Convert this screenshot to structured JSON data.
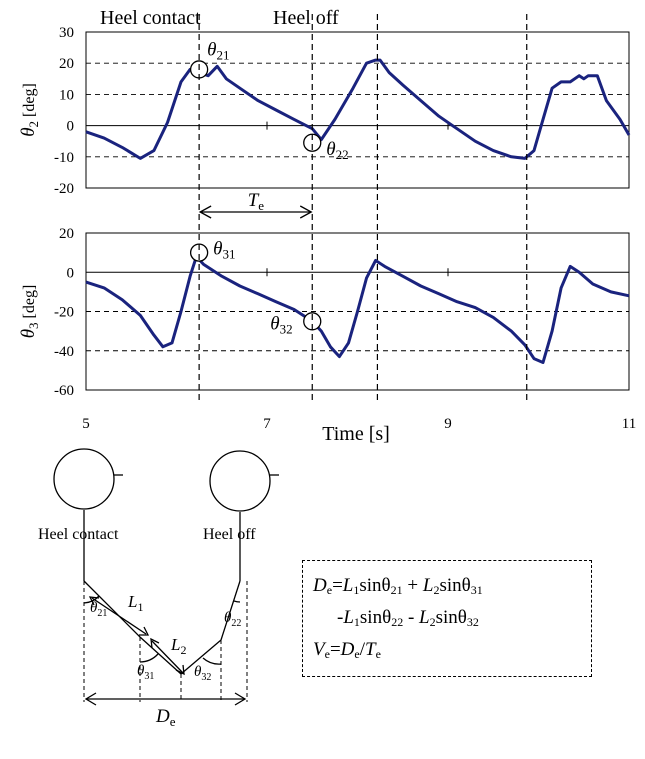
{
  "chart_data": [
    {
      "type": "line",
      "ylabel_symbol": "θ",
      "ylabel_sub": "2",
      "ylabel_unit": " [deg]",
      "xlim": [
        5,
        11
      ],
      "ylim": [
        -20,
        30
      ],
      "yticks": [
        -20,
        -10,
        0,
        10,
        20,
        30
      ],
      "grid": "dashed horizontal",
      "color": "#1a237e",
      "series": [
        {
          "x": [
            5.0,
            5.2,
            5.4,
            5.6,
            5.75,
            5.9,
            6.05,
            6.15,
            6.25,
            6.35,
            6.45,
            6.55,
            6.7,
            6.9,
            7.1,
            7.3,
            7.5,
            7.6,
            7.75,
            7.95,
            8.1,
            8.2,
            8.25,
            8.35,
            8.5,
            8.7,
            8.9,
            9.1,
            9.3,
            9.5,
            9.7,
            9.85,
            9.95,
            10.05,
            10.15,
            10.25,
            10.35,
            10.45,
            10.5,
            10.55,
            10.65,
            10.75,
            10.9,
            11.0
          ],
          "y": [
            -2,
            -4,
            -7,
            -10.5,
            -8,
            1,
            14,
            18,
            17,
            16,
            19,
            15,
            12,
            8,
            5,
            2,
            -1,
            -4.5,
            2,
            12,
            20,
            21,
            21,
            17,
            13,
            8,
            3,
            -1,
            -5,
            -8,
            -10,
            -10.5,
            -8,
            2,
            12,
            14,
            14,
            16,
            15,
            16,
            16,
            8,
            2,
            -3
          ]
        }
      ],
      "markers": [
        {
          "x": 6.25,
          "y": 18,
          "label_sym": "θ",
          "label_sub": "21"
        },
        {
          "x": 7.5,
          "y": -5.5,
          "label_sym": "θ",
          "label_sub": "22"
        }
      ]
    },
    {
      "type": "line",
      "xlabel": "Time [s]",
      "ylabel_symbol": "θ",
      "ylabel_sub": "3",
      "ylabel_unit": " [deg]",
      "xlim": [
        5,
        11
      ],
      "ylim": [
        -60,
        20
      ],
      "yticks": [
        -60,
        -40,
        -20,
        0,
        20
      ],
      "xticks": [
        5,
        7,
        9,
        11
      ],
      "grid": "dashed horizontal",
      "color": "#1a237e",
      "series": [
        {
          "x": [
            5.0,
            5.2,
            5.4,
            5.6,
            5.75,
            5.85,
            5.95,
            6.05,
            6.15,
            6.22,
            6.3,
            6.5,
            6.7,
            6.9,
            7.1,
            7.3,
            7.5,
            7.6,
            7.7,
            7.8,
            7.9,
            8.0,
            8.1,
            8.2,
            8.3,
            8.5,
            8.7,
            8.9,
            9.1,
            9.3,
            9.5,
            9.7,
            9.85,
            9.95,
            10.05,
            10.15,
            10.25,
            10.35,
            10.45,
            10.6,
            10.8,
            11.0
          ],
          "y": [
            -5,
            -8,
            -14,
            -22,
            -32,
            -38,
            -36,
            -20,
            -2,
            8,
            4,
            -2,
            -7,
            -11,
            -15,
            -19,
            -25,
            -30,
            -38,
            -43,
            -36,
            -20,
            -3,
            6,
            3,
            -2,
            -7,
            -11,
            -15,
            -18,
            -23,
            -30,
            -37,
            -44,
            -46,
            -30,
            -8,
            3,
            0,
            -6,
            -10,
            -12
          ]
        }
      ],
      "markers": [
        {
          "x": 6.25,
          "y": 10,
          "label_sym": "θ",
          "label_sub": "31"
        },
        {
          "x": 7.5,
          "y": -25,
          "label_sym": "θ",
          "label_sub": "32"
        }
      ]
    }
  ],
  "events": {
    "vlines_x": [
      6.25,
      7.5,
      8.22,
      9.87
    ],
    "heel_contact_label": "Heel contact",
    "heel_off_label": "Heel off",
    "period_symbol": "T",
    "period_sub": "e"
  },
  "diagram": {
    "heel_contact_label": "Heel contact",
    "heel_off_label": "Heel off",
    "L1_sym": "L",
    "L1_sub": "1",
    "L2_sym": "L",
    "L2_sub": "2",
    "theta21_sym": "θ",
    "theta21_sub": "21",
    "theta31_sym": "θ",
    "theta31_sub": "31",
    "theta22_sym": "θ",
    "theta22_sub": "22",
    "theta32_sym": "θ",
    "theta32_sub": "32",
    "De_sym": "D",
    "De_sub": "e"
  },
  "formula": {
    "line1": {
      "a": "D",
      "a_sub": "e",
      "eq": "=",
      "b": "L",
      "b_sub": "1",
      "c": "sinθ",
      "c_sub": "21",
      "d": " + ",
      "e": "L",
      "e_sub": "2",
      "f": "sinθ",
      "f_sub": "31"
    },
    "line2": {
      "a": "-",
      "b": "L",
      "b_sub": "1",
      "c": "sinθ",
      "c_sub": "22",
      "d": " - ",
      "e": "L",
      "e_sub": "2",
      "f": "sinθ",
      "f_sub": "32"
    },
    "line3": {
      "a": "V",
      "a_sub": "e",
      "eq": "=",
      "b": "D",
      "b_sub": "e",
      "slash": "/",
      "c": "T",
      "c_sub": "e"
    }
  }
}
